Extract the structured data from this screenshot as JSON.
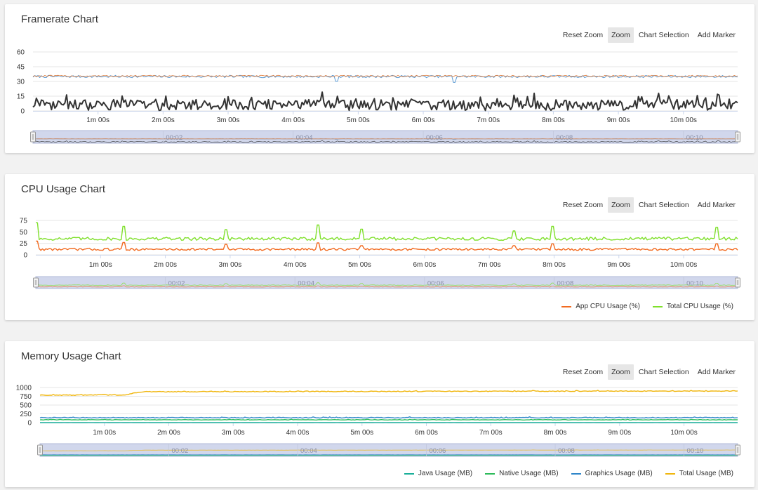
{
  "toolbar_labels": {
    "reset_zoom": "Reset Zoom",
    "zoom": "Zoom",
    "chart_selection": "Chart Selection",
    "add_marker": "Add Marker"
  },
  "chart_data": [
    {
      "id": "fps",
      "type": "line",
      "title": "Framerate Chart",
      "xlabel": "",
      "ylabel": "",
      "ylim": [
        0,
        60
      ],
      "yticks": [
        "0",
        "15",
        "30",
        "45",
        "60"
      ],
      "yticks_values": [
        0,
        15,
        30,
        45,
        60
      ],
      "xticks": [
        "1m 00s",
        "2m 00s",
        "3m 00s",
        "4m 00s",
        "5m 00s",
        "6m 00s",
        "7m 00s",
        "8m 00s",
        "9m 00s",
        "10m 00s"
      ],
      "xticks_seconds": [
        60,
        120,
        180,
        240,
        300,
        360,
        420,
        480,
        540,
        600
      ],
      "xlim_seconds": [
        0,
        650
      ],
      "navigator_ticks": [
        "00:02",
        "00:04",
        "00:06",
        "00:08",
        "00:10"
      ],
      "navigator_ticks_seconds": [
        120,
        240,
        360,
        480,
        600
      ],
      "grid": true,
      "legend": "none",
      "series": [
        {
          "color": "#5b9bd5",
          "base": 35,
          "noise": 1.2,
          "spikes": [
            [
              280,
              30
            ],
            [
              388,
              29
            ]
          ],
          "width": 1
        },
        {
          "color": "#e07b39",
          "base": 35.5,
          "noise": 0.8,
          "spikes": [],
          "width": 0.8
        },
        {
          "color": "#333333",
          "base": 6,
          "noise": 5.5,
          "spikes": [],
          "width": 2
        }
      ]
    },
    {
      "id": "cpu",
      "type": "line",
      "title": "CPU Usage Chart",
      "xlabel": "",
      "ylabel": "",
      "ylim": [
        0,
        75
      ],
      "yticks": [
        "0",
        "25",
        "50",
        "75"
      ],
      "yticks_values": [
        0,
        25,
        50,
        75
      ],
      "xticks": [
        "1m 00s",
        "2m 00s",
        "3m 00s",
        "4m 00s",
        "5m 00s",
        "6m 00s",
        "7m 00s",
        "8m 00s",
        "9m 00s",
        "10m 00s"
      ],
      "xticks_seconds": [
        60,
        120,
        180,
        240,
        300,
        360,
        420,
        480,
        540,
        600
      ],
      "xlim_seconds": [
        0,
        650
      ],
      "navigator_ticks": [
        "00:02",
        "00:04",
        "00:06",
        "00:08",
        "00:10"
      ],
      "navigator_ticks_seconds": [
        120,
        240,
        360,
        480,
        600
      ],
      "grid": true,
      "legend": "bottom-right",
      "series": [
        {
          "name": "App CPU Usage (%)",
          "color": "#f26b21",
          "base": 12,
          "noise": 2.5,
          "spikes": [
            [
              0,
              30
            ],
            [
              82,
              27
            ],
            [
              176,
              23
            ],
            [
              262,
              26
            ],
            [
              302,
              20
            ],
            [
              443,
              20
            ],
            [
              478,
              24
            ],
            [
              630,
              24
            ]
          ],
          "width": 1.4
        },
        {
          "name": "Total CPU Usage (%)",
          "color": "#7fe02b",
          "base": 35,
          "noise": 3.5,
          "spikes": [
            [
              0,
              70
            ],
            [
              82,
              62
            ],
            [
              176,
              55
            ],
            [
              262,
              65
            ],
            [
              302,
              56
            ],
            [
              443,
              52
            ],
            [
              478,
              62
            ],
            [
              630,
              60
            ]
          ],
          "width": 1.4
        }
      ]
    },
    {
      "id": "mem",
      "type": "line",
      "title": "Memory Usage Chart",
      "xlabel": "",
      "ylabel": "",
      "ylim": [
        0,
        1000
      ],
      "yticks": [
        "0",
        "250",
        "500",
        "750",
        "1000"
      ],
      "yticks_values": [
        0,
        250,
        500,
        750,
        1000
      ],
      "xticks": [
        "1m 00s",
        "2m 00s",
        "3m 00s",
        "4m 00s",
        "5m 00s",
        "6m 00s",
        "7m 00s",
        "8m 00s",
        "9m 00s",
        "10m 00s"
      ],
      "xticks_seconds": [
        60,
        120,
        180,
        240,
        300,
        360,
        420,
        480,
        540,
        600
      ],
      "xlim_seconds": [
        0,
        650
      ],
      "navigator_ticks": [
        "00:02",
        "00:04",
        "00:06",
        "00:08",
        "00:10"
      ],
      "navigator_ticks_seconds": [
        120,
        240,
        360,
        480,
        600
      ],
      "grid": true,
      "legend": "bottom-right",
      "series": [
        {
          "name": "Java Usage (MB)",
          "color": "#1aaf9a",
          "base": 0,
          "noise": 3,
          "spikes": [],
          "width": 1.4
        },
        {
          "name": "Native Usage (MB)",
          "color": "#2dbb5a",
          "base": 80,
          "noise": 6,
          "spikes": [],
          "width": 1.4
        },
        {
          "name": "Graphics Usage (MB)",
          "color": "#2f86c9",
          "base": 140,
          "noise": 10,
          "spikes": [],
          "width": 1.4
        },
        {
          "name": "Total Usage (MB)",
          "color": "#f0b60e",
          "base": 880,
          "noise": 10,
          "spikes": [],
          "width": 1.4,
          "ramp": [
            [
              0,
              780
            ],
            [
              80,
              790
            ],
            [
              95,
              880
            ],
            [
              650,
              900
            ]
          ]
        }
      ]
    }
  ]
}
